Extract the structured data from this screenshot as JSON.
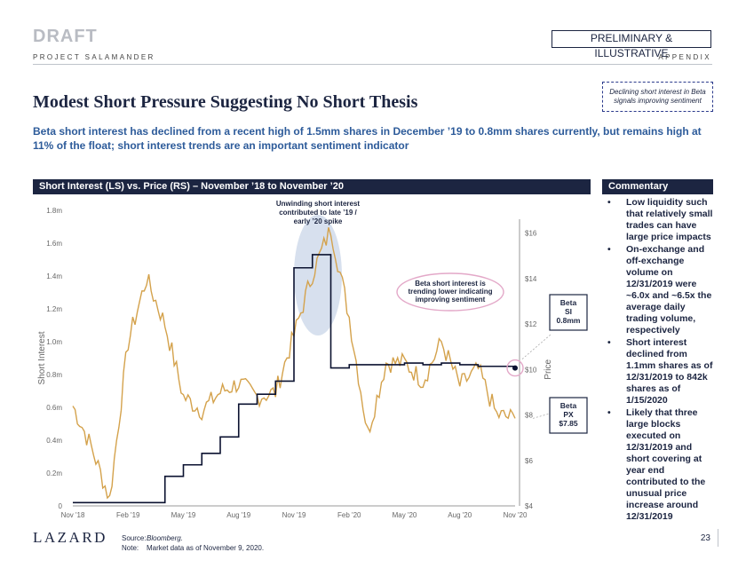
{
  "header": {
    "draft": "DRAFT",
    "project": "PROJECT SALAMANDER",
    "preliminary": "PRELIMINARY & ILLUSTRATIVE",
    "appendix": "APPENDIX"
  },
  "title": "Modest Short Pressure Suggesting No Short Thesis",
  "callout_box": "Declining short interest in Beta signals improving sentiment",
  "subtitle": "Beta short interest has declined from a recent high of 1.5mm shares in December ’19 to 0.8mm shares currently, but remains high at 11% of the  float; short interest trends are an important sentiment indicator",
  "chart_header": "Short Interest (LS) vs. Price (RS) – November ’18 to November ’20",
  "commentary": {
    "header": "Commentary",
    "bullets": [
      "Low liquidity such that relatively small trades can have large price impacts",
      "On-exchange and off-exchange volume on 12/31/2019 were ~6.0x and ~6.5x the average daily trading volume, respectively",
      "Short interest declined from 1.1mm shares as of 12/31/2019 to 842k shares as of 1/15/2020",
      "Likely that three large blocks executed on 12/31/2019 and short covering at year end contributed to the unusual price increase around 12/31/2019"
    ]
  },
  "colors": {
    "navy": "#1c2541",
    "price_line": "#d4a24c",
    "short_line": "#0b1230",
    "subtitle": "#2d5b9a",
    "ellipse_fill": "#c9d6e8",
    "callout_border": "#e3a8c8"
  },
  "chart_data": {
    "type": "line",
    "x": [
      "Nov '18",
      "Dec '18",
      "Jan '19",
      "Feb '19",
      "Mar '19",
      "Apr '19",
      "May '19",
      "Jun '19",
      "Jul '19",
      "Aug '19",
      "Sep '19",
      "Oct '19",
      "Nov '19",
      "Dec '19",
      "Jan '20",
      "Feb '20",
      "Mar '20",
      "Apr '20",
      "May '20",
      "Jun '20",
      "Jul '20",
      "Aug '20",
      "Sep '20",
      "Oct '20",
      "Nov '20"
    ],
    "xticks": [
      "Nov '18",
      "Feb '19",
      "May '19",
      "Aug '19",
      "Nov '19",
      "Feb '20",
      "May '20",
      "Aug '20",
      "Nov '20"
    ],
    "left_axis": {
      "label": "Short Interest",
      "ticks": [
        "0",
        "0.2m",
        "0.4m",
        "0.6m",
        "0.8m",
        "1.0m",
        "1.2m",
        "1.4m",
        "1.6m",
        "1.8m"
      ],
      "ylim": [
        0,
        1.8
      ]
    },
    "right_axis": {
      "label": "Price",
      "ticks": [
        "$4",
        "$6",
        "$8",
        "$10",
        "$12",
        "$14",
        "$16"
      ],
      "ylim": [
        4,
        17
      ]
    },
    "series": [
      {
        "name": "Short Interest (mm shares)",
        "axis": "left",
        "step": true,
        "values": [
          0.02,
          0.02,
          0.02,
          0.02,
          0.02,
          0.18,
          0.25,
          0.32,
          0.42,
          0.62,
          0.68,
          0.76,
          1.45,
          1.53,
          0.84,
          0.86,
          0.86,
          0.86,
          0.87,
          0.86,
          0.87,
          0.86,
          0.85,
          0.85,
          0.84
        ]
      },
      {
        "name": "Price ($)",
        "axis": "right",
        "values": [
          8.4,
          6.6,
          4.3,
          11.2,
          14.0,
          12.0,
          8.8,
          8.2,
          9.0,
          9.4,
          8.8,
          9.0,
          11.5,
          14.2,
          16.2,
          12.3,
          7.2,
          10.3,
          10.3,
          9.5,
          11.2,
          9.3,
          10.0,
          8.0,
          7.85
        ]
      }
    ],
    "annotations": {
      "spike_label": "Unwinding short interest contributed to late ’19 / early ’20 spike",
      "trend_label": "Beta short interest is trending lower indicating improving sentiment",
      "si_label": "Beta SI 0.8mm",
      "px_label": "Beta PX $7.85"
    }
  },
  "footer": {
    "logo": "LAZARD",
    "source_label": "Source:",
    "source_value": "Bloomberg.",
    "note_label": "Note:",
    "note_value": "Market data as of November 9, 2020.",
    "page": "23"
  }
}
